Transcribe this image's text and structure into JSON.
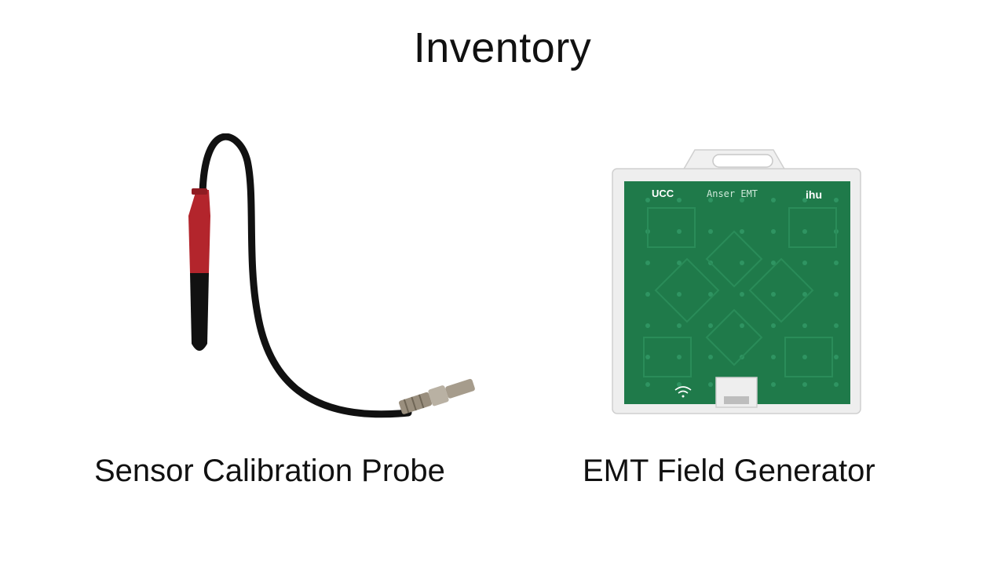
{
  "slide": {
    "title": "Inventory"
  },
  "items": [
    {
      "caption": "Sensor Calibration Probe",
      "image": "calibration-probe-photo"
    },
    {
      "caption": "EMT Field Generator",
      "image": "field-generator-photo",
      "board_text": "Anser EMT",
      "logos": [
        "UCC",
        "ihu"
      ]
    }
  ],
  "colors": {
    "probe_red": "#b3252c",
    "cable": "#111111",
    "board_green": "#1f7a4a"
  }
}
